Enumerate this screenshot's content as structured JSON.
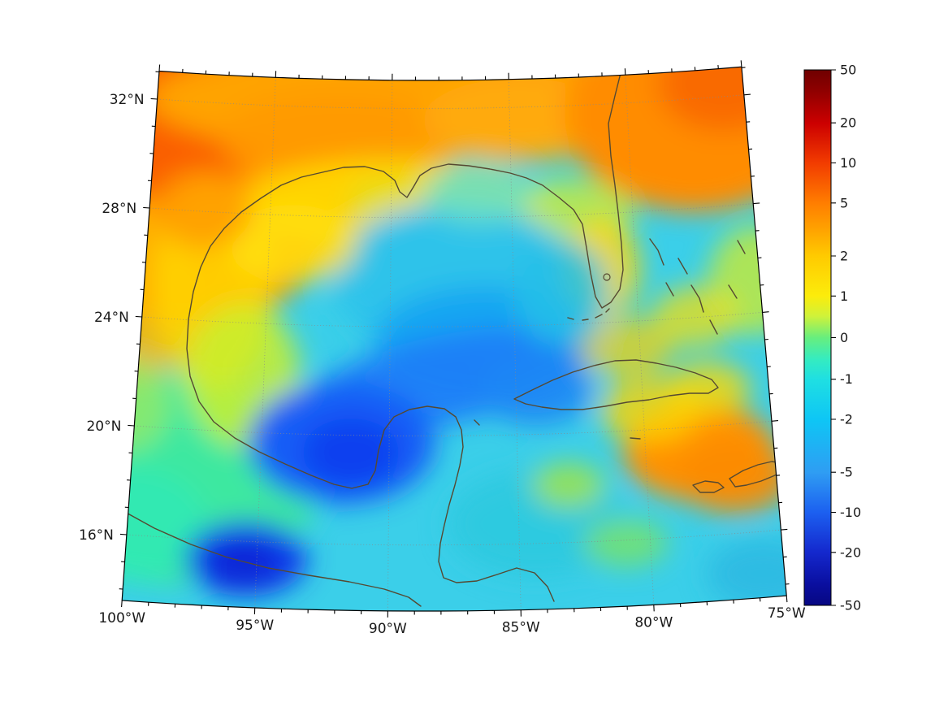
{
  "map": {
    "lat_labels": [
      "32°N",
      "28°N",
      "24°N",
      "20°N",
      "16°N"
    ],
    "lon_labels": [
      "100°W",
      "95°W",
      "90°W",
      "85°W",
      "80°W",
      "75°W"
    ]
  },
  "colorbar": {
    "labels": [
      "50",
      "20",
      "10",
      "5",
      "2",
      "1",
      "0",
      "-1",
      "-2",
      "-5",
      "-10",
      "-20",
      "-50"
    ],
    "values": [
      50,
      20,
      10,
      5,
      2,
      1,
      0,
      -1,
      -2,
      -5,
      -10,
      -20,
      -50
    ],
    "scale": "symlog",
    "range": [
      -50,
      50
    ],
    "gradient": [
      [
        0,
        "#6f0000"
      ],
      [
        4,
        "#900000"
      ],
      [
        10,
        "#cc0000"
      ],
      [
        17.4,
        "#f23c00"
      ],
      [
        24.8,
        "#ff7d00"
      ],
      [
        30,
        "#ffa400"
      ],
      [
        34.7,
        "#ffca00"
      ],
      [
        42.2,
        "#fcec0b"
      ],
      [
        46,
        "#cff23a"
      ],
      [
        50,
        "#67ee7e"
      ],
      [
        54,
        "#35ecc0"
      ],
      [
        57.8,
        "#1fdfe2"
      ],
      [
        65.3,
        "#0ec6f5"
      ],
      [
        75.2,
        "#2f9df3"
      ],
      [
        82.6,
        "#1c60f0"
      ],
      [
        90.1,
        "#1428cd"
      ],
      [
        96,
        "#0a0fa0"
      ],
      [
        100,
        "#070782"
      ]
    ]
  },
  "chart_data": {
    "type": "heatmap",
    "title": "",
    "xlabel": "",
    "ylabel": "",
    "projection": "conic map (curved parallels, converging meridians), Gulf of Mexico & Caribbean",
    "x_ticks": [
      "100°W",
      "95°W",
      "90°W",
      "85°W",
      "80°W",
      "75°W"
    ],
    "y_ticks": [
      "32°N",
      "28°N",
      "24°N",
      "20°N",
      "16°N"
    ],
    "lon_range_deg_west": [
      100,
      75
    ],
    "lat_range_deg_north": [
      13.6,
      33
    ],
    "grid": "dotted graticule every 5° longitude / 4° latitude",
    "legend_position": "right colorbar",
    "colorbar": {
      "scale": "symlog",
      "ticks": [
        50,
        20,
        10,
        5,
        2,
        1,
        0,
        -1,
        -2,
        -5,
        -10,
        -20,
        -50
      ],
      "range": [
        -50,
        50
      ],
      "colormap": "jet-like: dark red → red → orange → yellow → green → cyan → blue → dark blue"
    },
    "series": {
      "lats": [
        32,
        28,
        24,
        20,
        16
      ],
      "lons": [
        -100,
        -95,
        -90,
        -85,
        -80,
        -75
      ],
      "values_estimated": [
        [
          5,
          3,
          3,
          3,
          4,
          4
        ],
        [
          8,
          4,
          1,
          -1,
          3,
          2
        ],
        [
          5,
          1.5,
          -1,
          -2,
          0,
          -2
        ],
        [
          0,
          -5,
          -4,
          -2,
          2,
          3
        ],
        [
          -1,
          -8,
          -2,
          -2,
          -2,
          -2
        ]
      ],
      "note": "field values estimated visually from the colormap at graticule intersections; no units shown in figure"
    }
  }
}
